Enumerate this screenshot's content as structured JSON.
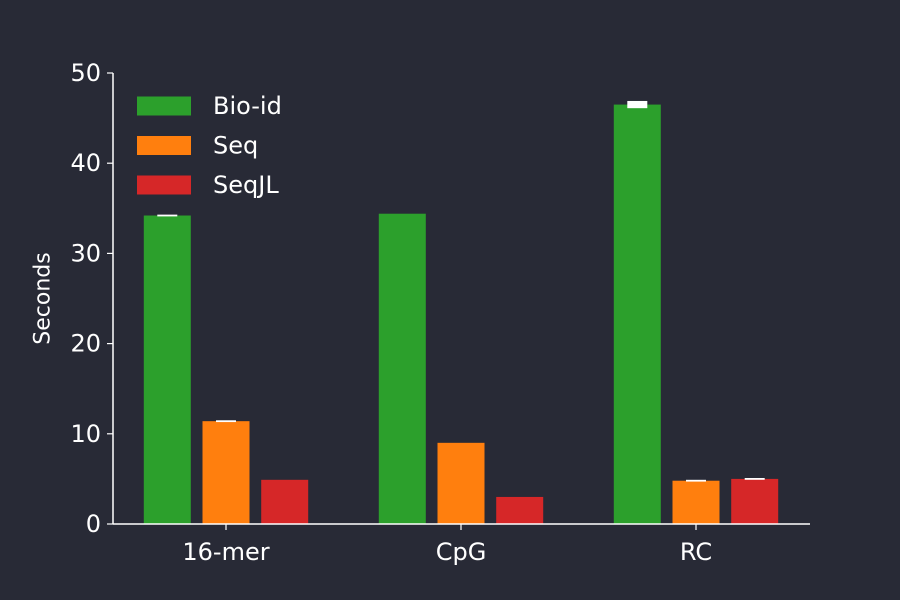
{
  "colors": {
    "background": "#282a36",
    "axis": "#ffffff",
    "text": "#ffffff",
    "error_bar": "#ffffff"
  },
  "chart_data": {
    "type": "bar",
    "title": "",
    "xlabel": "",
    "ylabel": "Seconds",
    "ylim": [
      0,
      50
    ],
    "yticks": [
      0,
      10,
      20,
      30,
      40,
      50
    ],
    "grid": false,
    "legend_position": "top-left",
    "categories": [
      "16-mer",
      "CpG",
      "RC"
    ],
    "series": [
      {
        "name": "Bio-id",
        "color": "#2ca02c",
        "values": [
          34.2,
          34.4,
          46.5
        ],
        "errors": [
          0.1,
          0.0,
          0.4
        ]
      },
      {
        "name": "Seq",
        "color": "#ff7f0e",
        "values": [
          11.4,
          9.0,
          4.8
        ],
        "errors": [
          0.1,
          0.0,
          0.1
        ]
      },
      {
        "name": "SeqJL",
        "color": "#d62728",
        "values": [
          4.9,
          3.0,
          5.0
        ],
        "errors": [
          0.0,
          0.0,
          0.1
        ]
      }
    ]
  }
}
